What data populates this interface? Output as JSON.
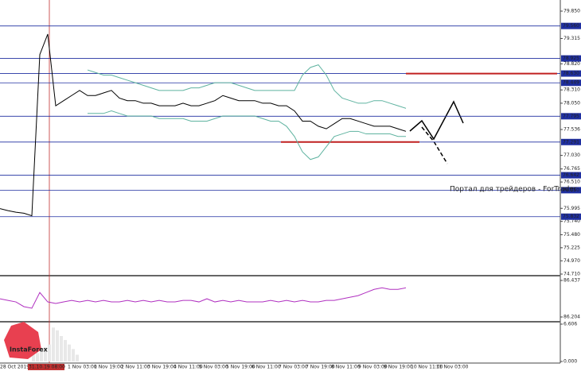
{
  "chart_data": [
    {
      "type": "line",
      "color": "#000000",
      "values": [
        75.99,
        75.95,
        75.92,
        75.9,
        75.85,
        79.0,
        79.4,
        78.0,
        78.1,
        78.2,
        78.3,
        78.2,
        78.2,
        78.25,
        78.3,
        78.15,
        78.1,
        78.1,
        78.05,
        78.05,
        78.0,
        78.0,
        78.0,
        78.05,
        78.0,
        78.0,
        78.05,
        78.1,
        78.2,
        78.15,
        78.1,
        78.1,
        78.1,
        78.05,
        78.05,
        78.0,
        78.0,
        77.9,
        77.7,
        77.7,
        77.6,
        77.55,
        77.65,
        77.75,
        77.75,
        77.7,
        77.65,
        77.6,
        77.6,
        77.6,
        77.55,
        77.5
      ],
      "bands": {
        "color": "#5fb3a0",
        "upper": [
          null,
          null,
          null,
          null,
          null,
          null,
          null,
          null,
          null,
          null,
          null,
          78.7,
          78.65,
          78.6,
          78.6,
          78.55,
          78.5,
          78.45,
          78.4,
          78.35,
          78.3,
          78.3,
          78.3,
          78.3,
          78.35,
          78.35,
          78.4,
          78.45,
          78.45,
          78.45,
          78.4,
          78.35,
          78.3,
          78.3,
          78.3,
          78.3,
          78.3,
          78.3,
          78.6,
          78.75,
          78.8,
          78.6,
          78.3,
          78.15,
          78.1,
          78.05,
          78.05,
          78.1,
          78.1,
          78.05,
          78.0,
          77.95
        ],
        "lower": [
          null,
          null,
          null,
          null,
          null,
          null,
          null,
          null,
          null,
          null,
          null,
          77.85,
          77.85,
          77.85,
          77.9,
          77.85,
          77.8,
          77.8,
          77.8,
          77.8,
          77.75,
          77.75,
          77.75,
          77.75,
          77.7,
          77.7,
          77.7,
          77.75,
          77.8,
          77.8,
          77.8,
          77.8,
          77.8,
          77.75,
          77.7,
          77.7,
          77.6,
          77.4,
          77.1,
          76.95,
          77.0,
          77.2,
          77.4,
          77.45,
          77.5,
          77.5,
          77.45,
          77.45,
          77.45,
          77.45,
          77.4,
          77.4
        ]
      },
      "ylim": [
        74.71,
        79.85
      ],
      "yticks": [
        {
          "value": 79.85,
          "label": "79.850"
        },
        {
          "value": 79.315,
          "label": "79.315"
        },
        {
          "value": 78.82,
          "label": "78.820"
        },
        {
          "value": 78.31,
          "label": "78.310"
        },
        {
          "value": 78.05,
          "label": "78.050"
        },
        {
          "value": 77.536,
          "label": "77.536"
        },
        {
          "value": 77.03,
          "label": "77.030"
        },
        {
          "value": 76.765,
          "label": "76.765"
        },
        {
          "value": 76.51,
          "label": "76.510"
        },
        {
          "value": 75.995,
          "label": "75.995"
        },
        {
          "value": 75.74,
          "label": "75.740"
        },
        {
          "value": 75.48,
          "label": "75.480"
        },
        {
          "value": 75.225,
          "label": "75.225"
        },
        {
          "value": 74.97,
          "label": "74.970"
        },
        {
          "value": 74.71,
          "label": "74.710"
        }
      ],
      "levels": [
        {
          "value": 79.56,
          "label": "79.560"
        },
        {
          "value": 78.925,
          "label": "78.925"
        },
        {
          "value": 78.63,
          "label": "78.630"
        },
        {
          "value": 78.449,
          "label": "78.449"
        },
        {
          "value": 77.795,
          "label": "77.795"
        },
        {
          "value": 77.291,
          "label": "77.291"
        },
        {
          "value": 76.642,
          "label": "76.642"
        },
        {
          "value": 76.35,
          "label": "76.350"
        },
        {
          "value": 75.832,
          "label": "75.832"
        }
      ],
      "level_color": "#1f2fa0",
      "red_levels": [
        78.63,
        77.291
      ],
      "watermark": "Портал для трейдеров - ForTrader",
      "xtick_labels": [
        "28 Oct 2019",
        "31.10.19 08:00",
        "1 Nov 03:00",
        "1 Nov 19:00",
        "2 Nov 11:00",
        "3 Nov 19:00",
        "4 Nov 11:00",
        "5 Nov 03:00",
        "5 Nov 19:00",
        "6 Nov 11:00",
        "7 Nov 03:00",
        "7 Nov 19:00",
        "8 Nov 11:00",
        "9 Nov 03:00",
        "9 Nov 19:00",
        "10 Nov 11:00",
        "11 Nov 03:00"
      ]
    },
    {
      "type": "line",
      "color": "#b030c0",
      "values": [
        86.32,
        86.31,
        86.3,
        86.27,
        86.26,
        86.36,
        86.3,
        86.29,
        86.3,
        86.31,
        86.3,
        86.31,
        86.3,
        86.31,
        86.3,
        86.3,
        86.31,
        86.3,
        86.31,
        86.3,
        86.31,
        86.3,
        86.3,
        86.31,
        86.31,
        86.3,
        86.32,
        86.3,
        86.31,
        86.3,
        86.31,
        86.3,
        86.3,
        86.3,
        86.31,
        86.3,
        86.31,
        86.3,
        86.31,
        86.3,
        86.3,
        86.31,
        86.31,
        86.32,
        86.33,
        86.34,
        86.36,
        86.38,
        86.39,
        86.38,
        86.38,
        86.39
      ],
      "ylim": [
        86.204,
        86.437
      ],
      "yticks": [
        {
          "value": 86.437,
          "label": "86.437"
        },
        {
          "value": 86.204,
          "label": "86.204"
        }
      ]
    },
    {
      "type": "bar",
      "color": "#e8e8e8",
      "values": [
        1.2,
        1.5,
        2.0,
        2.5,
        3.0,
        6.0,
        5.5,
        4.5,
        3.8,
        3.0,
        2.2,
        1.2
      ],
      "ylim": [
        0,
        6.606
      ],
      "yticks": [
        {
          "value": 6.606,
          "label": "6.606"
        },
        {
          "value": 0,
          "label": "0.000"
        }
      ],
      "logo": "InstaForex"
    }
  ]
}
